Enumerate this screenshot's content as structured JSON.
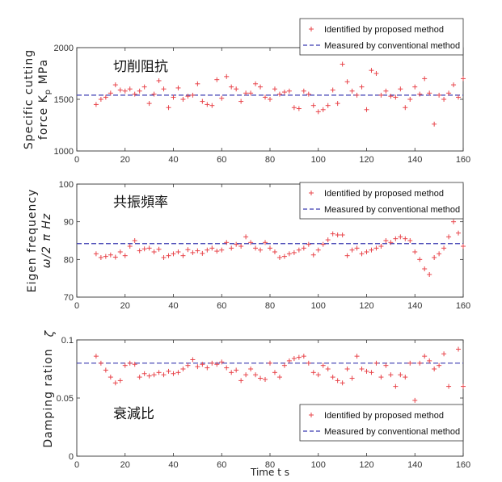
{
  "figure": {
    "xlabel": "Time t s",
    "legend": {
      "identified": "Identified by proposed method",
      "measured": "Measured by conventional method"
    },
    "colors": {
      "identified": "#e8444a",
      "measured": "#3a3ab0"
    }
  },
  "chart_data": [
    {
      "type": "scatter",
      "annotation": "切削阻抗",
      "ylabel_line1": "Specific cutting",
      "ylabel_line2": "force K",
      "ylabel_sub": "p",
      "ylabel_unit": "MPa",
      "xlim": [
        0,
        160
      ],
      "ylim": [
        1000,
        2000
      ],
      "xticks": [
        0,
        20,
        40,
        60,
        80,
        100,
        120,
        140,
        160
      ],
      "yticks": [
        1000,
        1500,
        2000
      ],
      "legend_position": "top-right",
      "grid": false,
      "series": [
        {
          "name": "Identified by proposed method",
          "marker": "+",
          "x": [
            8,
            10,
            12,
            14,
            16,
            18,
            20,
            22,
            24,
            26,
            28,
            30,
            32,
            34,
            36,
            38,
            40,
            42,
            44,
            46,
            48,
            50,
            52,
            54,
            56,
            58,
            60,
            62,
            64,
            66,
            68,
            70,
            72,
            74,
            76,
            78,
            80,
            82,
            84,
            86,
            88,
            90,
            92,
            94,
            96,
            98,
            100,
            102,
            104,
            106,
            108,
            110,
            112,
            114,
            116,
            118,
            120,
            122,
            124,
            126,
            128,
            130,
            132,
            134,
            136,
            138,
            140,
            142,
            144,
            146,
            148,
            150,
            152,
            154,
            156,
            158,
            160
          ],
          "y": [
            1450,
            1500,
            1520,
            1560,
            1640,
            1590,
            1580,
            1600,
            1550,
            1580,
            1620,
            1460,
            1550,
            1680,
            1600,
            1420,
            1520,
            1610,
            1500,
            1530,
            1540,
            1650,
            1480,
            1450,
            1440,
            1690,
            1510,
            1720,
            1620,
            1600,
            1480,
            1560,
            1560,
            1650,
            1620,
            1520,
            1500,
            1600,
            1550,
            1570,
            1580,
            1420,
            1410,
            1580,
            1550,
            1440,
            1380,
            1400,
            1440,
            1590,
            1460,
            1840,
            1670,
            1580,
            1540,
            1620,
            1400,
            1780,
            1750,
            1540,
            1580,
            1530,
            1520,
            1600,
            1420,
            1500,
            1620,
            1550,
            1700,
            1560,
            1260,
            1540,
            1500,
            1560,
            1640,
            1520,
            1700
          ]
        },
        {
          "name": "Measured by conventional method",
          "line": "dashed",
          "x": [
            0,
            160
          ],
          "y": [
            1540,
            1540
          ]
        }
      ]
    },
    {
      "type": "scatter",
      "annotation": "共振頻率",
      "ylabel_line1": "Eigen frequency",
      "ylabel_line2": "ω/2 π  Hz",
      "xlim": [
        0,
        160
      ],
      "ylim": [
        70,
        100
      ],
      "xticks": [
        0,
        20,
        40,
        60,
        80,
        100,
        120,
        140,
        160
      ],
      "yticks": [
        70,
        80,
        90,
        100
      ],
      "legend_position": "top-right",
      "grid": false,
      "series": [
        {
          "name": "Identified by proposed method",
          "marker": "+",
          "x": [
            8,
            10,
            12,
            14,
            16,
            18,
            20,
            22,
            24,
            26,
            28,
            30,
            32,
            34,
            36,
            38,
            40,
            42,
            44,
            46,
            48,
            50,
            52,
            54,
            56,
            58,
            60,
            62,
            64,
            66,
            68,
            70,
            72,
            74,
            76,
            78,
            80,
            82,
            84,
            86,
            88,
            90,
            92,
            94,
            96,
            98,
            100,
            102,
            104,
            106,
            108,
            110,
            112,
            114,
            116,
            118,
            120,
            122,
            124,
            126,
            128,
            130,
            132,
            134,
            136,
            138,
            140,
            142,
            144,
            146,
            148,
            150,
            152,
            154,
            156,
            158,
            160
          ],
          "y": [
            81.5,
            80.5,
            80.8,
            81.2,
            80.6,
            82.0,
            81.0,
            83.5,
            85.0,
            82.3,
            82.8,
            83.0,
            82.0,
            82.7,
            80.5,
            81.0,
            81.5,
            82.0,
            81.0,
            82.6,
            81.8,
            82.3,
            81.6,
            82.5,
            83.0,
            82.2,
            82.5,
            84.5,
            83.0,
            84.0,
            83.5,
            86.0,
            84.5,
            83.0,
            82.5,
            84.5,
            83.0,
            82.0,
            80.5,
            80.8,
            81.5,
            81.8,
            82.5,
            83.0,
            84.0,
            81.2,
            82.5,
            84.0,
            85.2,
            86.8,
            86.5,
            86.5,
            81.0,
            82.5,
            83.0,
            81.5,
            82.0,
            82.5,
            83.0,
            83.5,
            85.0,
            84.5,
            85.5,
            86.0,
            85.5,
            85.0,
            82.0,
            80.0,
            77.5,
            76.0,
            80.5,
            81.5,
            83.0,
            86.0,
            90.0,
            87.0,
            83.5
          ]
        },
        {
          "name": "Measured by conventional method",
          "line": "dashed",
          "x": [
            0,
            160
          ],
          "y": [
            84.2,
            84.2
          ]
        }
      ]
    },
    {
      "type": "scatter",
      "annotation": "衰減比",
      "ylabel_line1": "Damping ration",
      "ylabel_symbol": "ζ",
      "xlim": [
        0,
        160
      ],
      "ylim": [
        0,
        0.1
      ],
      "xticks": [
        0,
        20,
        40,
        60,
        80,
        100,
        120,
        140,
        160
      ],
      "yticks": [
        0,
        0.05,
        0.1
      ],
      "ytick_labels": [
        "0",
        "0.05",
        "0.1"
      ],
      "legend_position": "bottom-right",
      "grid": false,
      "series": [
        {
          "name": "Identified by proposed method",
          "marker": "+",
          "x": [
            8,
            10,
            12,
            14,
            16,
            18,
            20,
            22,
            24,
            26,
            28,
            30,
            32,
            34,
            36,
            38,
            40,
            42,
            44,
            46,
            48,
            50,
            52,
            54,
            56,
            58,
            60,
            62,
            64,
            66,
            68,
            70,
            72,
            74,
            76,
            78,
            80,
            82,
            84,
            86,
            88,
            90,
            92,
            94,
            96,
            98,
            100,
            102,
            104,
            106,
            108,
            110,
            112,
            114,
            116,
            118,
            120,
            122,
            124,
            126,
            128,
            130,
            132,
            134,
            136,
            138,
            140,
            142,
            144,
            146,
            148,
            150,
            152,
            154,
            156,
            158,
            160
          ],
          "y": [
            0.086,
            0.08,
            0.074,
            0.068,
            0.063,
            0.065,
            0.078,
            0.08,
            0.079,
            0.068,
            0.071,
            0.069,
            0.07,
            0.072,
            0.07,
            0.073,
            0.071,
            0.072,
            0.075,
            0.078,
            0.083,
            0.077,
            0.079,
            0.076,
            0.08,
            0.079,
            0.081,
            0.076,
            0.072,
            0.074,
            0.065,
            0.07,
            0.075,
            0.07,
            0.067,
            0.066,
            0.08,
            0.072,
            0.068,
            0.078,
            0.082,
            0.084,
            0.085,
            0.086,
            0.08,
            0.072,
            0.07,
            0.078,
            0.075,
            0.068,
            0.065,
            0.063,
            0.075,
            0.067,
            0.086,
            0.075,
            0.073,
            0.072,
            0.08,
            0.068,
            0.078,
            0.07,
            0.06,
            0.07,
            0.068,
            0.08,
            0.048,
            0.08,
            0.086,
            0.082,
            0.075,
            0.078,
            0.088,
            0.06,
            0.042,
            0.092,
            0.06
          ]
        },
        {
          "name": "Measured by conventional method",
          "line": "dashed",
          "x": [
            0,
            160
          ],
          "y": [
            0.08,
            0.08
          ]
        }
      ]
    }
  ]
}
